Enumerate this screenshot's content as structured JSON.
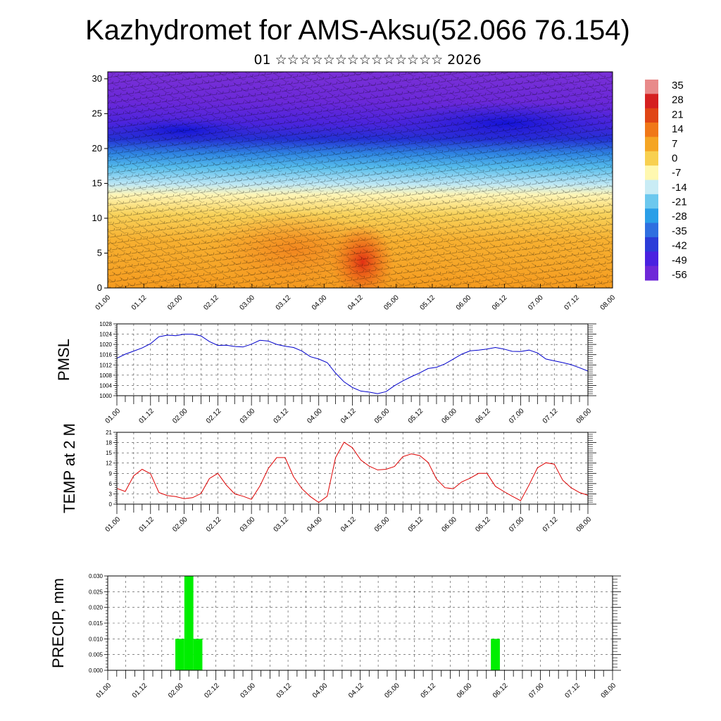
{
  "title": "Kazhydromet for AMS-Aksu(52.066 76.154)",
  "subtitle": "01 ☆☆☆☆☆☆☆☆☆☆☆☆☆☆ 2026",
  "x_ticks": [
    "01.00",
    "01.12",
    "02.00",
    "02.12",
    "03.00",
    "03.12",
    "04.00",
    "04.12",
    "05.00",
    "05.12",
    "06.00",
    "06.12",
    "07.00",
    "07.12",
    "08.00"
  ],
  "chart_data": [
    {
      "id": "cross-section",
      "type": "heatmap",
      "description_of_axes": "time vs height index with wind barbs",
      "ylim": [
        0,
        31
      ],
      "y_ticks": [
        0,
        5,
        10,
        15,
        20,
        25,
        30
      ],
      "colorbar": {
        "labels": [
          "35",
          "28",
          "21",
          "14",
          "7",
          "0",
          "-7",
          "-14",
          "-21",
          "-28",
          "-35",
          "-42",
          "-49",
          "-56"
        ],
        "colors": [
          "#e88a8a",
          "#d52020",
          "#e04515",
          "#f07818",
          "#f5a524",
          "#f8d050",
          "#fff8b0",
          "#c9ecf5",
          "#6cc8ee",
          "#2a9fe8",
          "#2f6fe0",
          "#2b3cd8",
          "#4a21e0",
          "#6f28d8"
        ]
      }
    },
    {
      "id": "pmsl",
      "type": "line",
      "ylabel": "PMSL",
      "ylim": [
        1000,
        1028
      ],
      "y_ticks": [
        "1000",
        "1004",
        "1008",
        "1012",
        "1016",
        "1020",
        "1024",
        "1028"
      ],
      "color": "#0000cc",
      "x": [
        0,
        3,
        6,
        9,
        12,
        15,
        18,
        21,
        24,
        27,
        30,
        33,
        36,
        39,
        42,
        45,
        48,
        51,
        54,
        57,
        60,
        63,
        66,
        69,
        72,
        75,
        78,
        81,
        84,
        87,
        90,
        93,
        96,
        99,
        102,
        105,
        108,
        111,
        114,
        117,
        120,
        123,
        126,
        129,
        132,
        135,
        138,
        141,
        144,
        147,
        150,
        153,
        156,
        159,
        162,
        165,
        168
      ],
      "values": [
        1014.6,
        1016.2,
        1017.4,
        1018.6,
        1020.3,
        1023.0,
        1023.6,
        1023.4,
        1024.0,
        1024.0,
        1023.3,
        1021.1,
        1019.6,
        1019.7,
        1019.2,
        1019.0,
        1020.1,
        1021.6,
        1021.3,
        1020.0,
        1019.3,
        1018.8,
        1017.4,
        1015.2,
        1014.3,
        1012.9,
        1008.8,
        1005.4,
        1003.2,
        1001.8,
        1001.4,
        1000.8,
        1001.6,
        1003.9,
        1005.8,
        1007.4,
        1008.9,
        1010.6,
        1011.1,
        1012.4,
        1014.3,
        1016.2,
        1017.5,
        1017.8,
        1018.2,
        1018.8,
        1018.2,
        1017.3,
        1017.2,
        1017.8,
        1016.7,
        1014.3,
        1013.6,
        1012.9,
        1012.1,
        1010.9,
        1009.6
      ]
    },
    {
      "id": "temp2m",
      "type": "line",
      "ylabel": "TEMP at 2 M",
      "ylim": [
        0,
        21
      ],
      "y_ticks": [
        "0",
        "3",
        "6",
        "9",
        "12",
        "15",
        "18",
        "21"
      ],
      "color": "#dd0000",
      "x": [
        0,
        3,
        6,
        9,
        12,
        15,
        18,
        21,
        24,
        27,
        30,
        33,
        36,
        39,
        42,
        45,
        48,
        51,
        54,
        57,
        60,
        63,
        66,
        69,
        72,
        75,
        78,
        81,
        84,
        87,
        90,
        93,
        96,
        99,
        102,
        105,
        108,
        111,
        114,
        117,
        120,
        123,
        126,
        129,
        132,
        135,
        138,
        141,
        144,
        147,
        150,
        153,
        156,
        159,
        162,
        165,
        168
      ],
      "values": [
        4.6,
        3.7,
        8.3,
        10.2,
        8.9,
        3.4,
        2.5,
        2.2,
        1.6,
        1.9,
        3.1,
        7.5,
        9.0,
        5.6,
        3.0,
        2.3,
        1.4,
        5.3,
        10.4,
        13.6,
        13.6,
        8.0,
        4.5,
        2.2,
        0.5,
        2.3,
        13.6,
        18.1,
        16.5,
        12.9,
        11.1,
        10.0,
        10.2,
        11.0,
        13.9,
        14.7,
        14.2,
        12.2,
        7.3,
        4.8,
        4.5,
        6.5,
        7.6,
        9.0,
        9.0,
        5.2,
        3.7,
        2.3,
        1.0,
        5.6,
        10.6,
        12.1,
        11.7,
        7.0,
        4.8,
        3.4,
        2.6
      ]
    },
    {
      "id": "precip",
      "type": "bar",
      "ylabel": "PRECIP, mm",
      "ylim": [
        0,
        0.03
      ],
      "y_ticks": [
        "0.000",
        "0.005",
        "0.010",
        "0.015",
        "0.020",
        "0.025",
        "0.030"
      ],
      "color": "#00ee00",
      "bars": [
        {
          "start": 22.5,
          "end": 25.5,
          "value": 0.01
        },
        {
          "start": 25.5,
          "end": 28.5,
          "value": 0.03
        },
        {
          "start": 28.5,
          "end": 31.5,
          "value": 0.01
        },
        {
          "start": 127.5,
          "end": 130.5,
          "value": 0.01
        }
      ]
    }
  ]
}
